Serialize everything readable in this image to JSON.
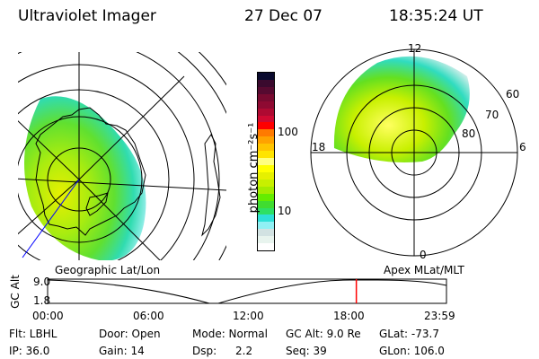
{
  "header": {
    "instrument": "Ultraviolet Imager",
    "date": "27 Dec 07",
    "time": "18:35:24 UT"
  },
  "colorbar": {
    "label": "photon cm⁻²s⁻¹",
    "ticks": [
      "100",
      "10"
    ],
    "colors": [
      "#0a0a2e",
      "#3a0a2e",
      "#560a30",
      "#780a30",
      "#8e0a32",
      "#ae0a32",
      "#d00a32",
      "#ff0000",
      "#ff7a00",
      "#ffa200",
      "#ffc400",
      "#ffe400",
      "#ffff80",
      "#ffff00",
      "#e6f000",
      "#c8f000",
      "#a4ec00",
      "#64ec00",
      "#40dc30",
      "#2ee064",
      "#2ee0d8",
      "#90f0f4",
      "#d2e2e2",
      "#e8f4ee",
      "#ffffff"
    ]
  },
  "polar_plot": {
    "mlt_labels": [
      "12",
      "6",
      "0",
      "18"
    ],
    "mlat_labels": [
      "60",
      "70",
      "80"
    ]
  },
  "timeline": {
    "left_label": "Geographic Lat/Lon",
    "right_label": "Apex MLat/MLT",
    "y_axis_label": "GC Alt",
    "y_ticks": [
      "9.0",
      "1.8"
    ],
    "x_ticks": [
      "00:00",
      "06:00",
      "12:00",
      "18:00",
      "23:59"
    ],
    "current_time_fraction": 0.774,
    "marker_color": "#ff0000"
  },
  "info": {
    "flt": "Flt: LBHL",
    "ip": "IP: 36.0",
    "door": "Door: Open",
    "gain": "Gain: 14",
    "mode": "Mode: Normal",
    "dsp_label": "Dsp:",
    "dsp_value": "2.2",
    "gc_alt": "GC Alt: 9.0 Re",
    "seq": "Seq: 39",
    "glat": "GLat: -73.7",
    "glon": "GLon: 106.0"
  }
}
